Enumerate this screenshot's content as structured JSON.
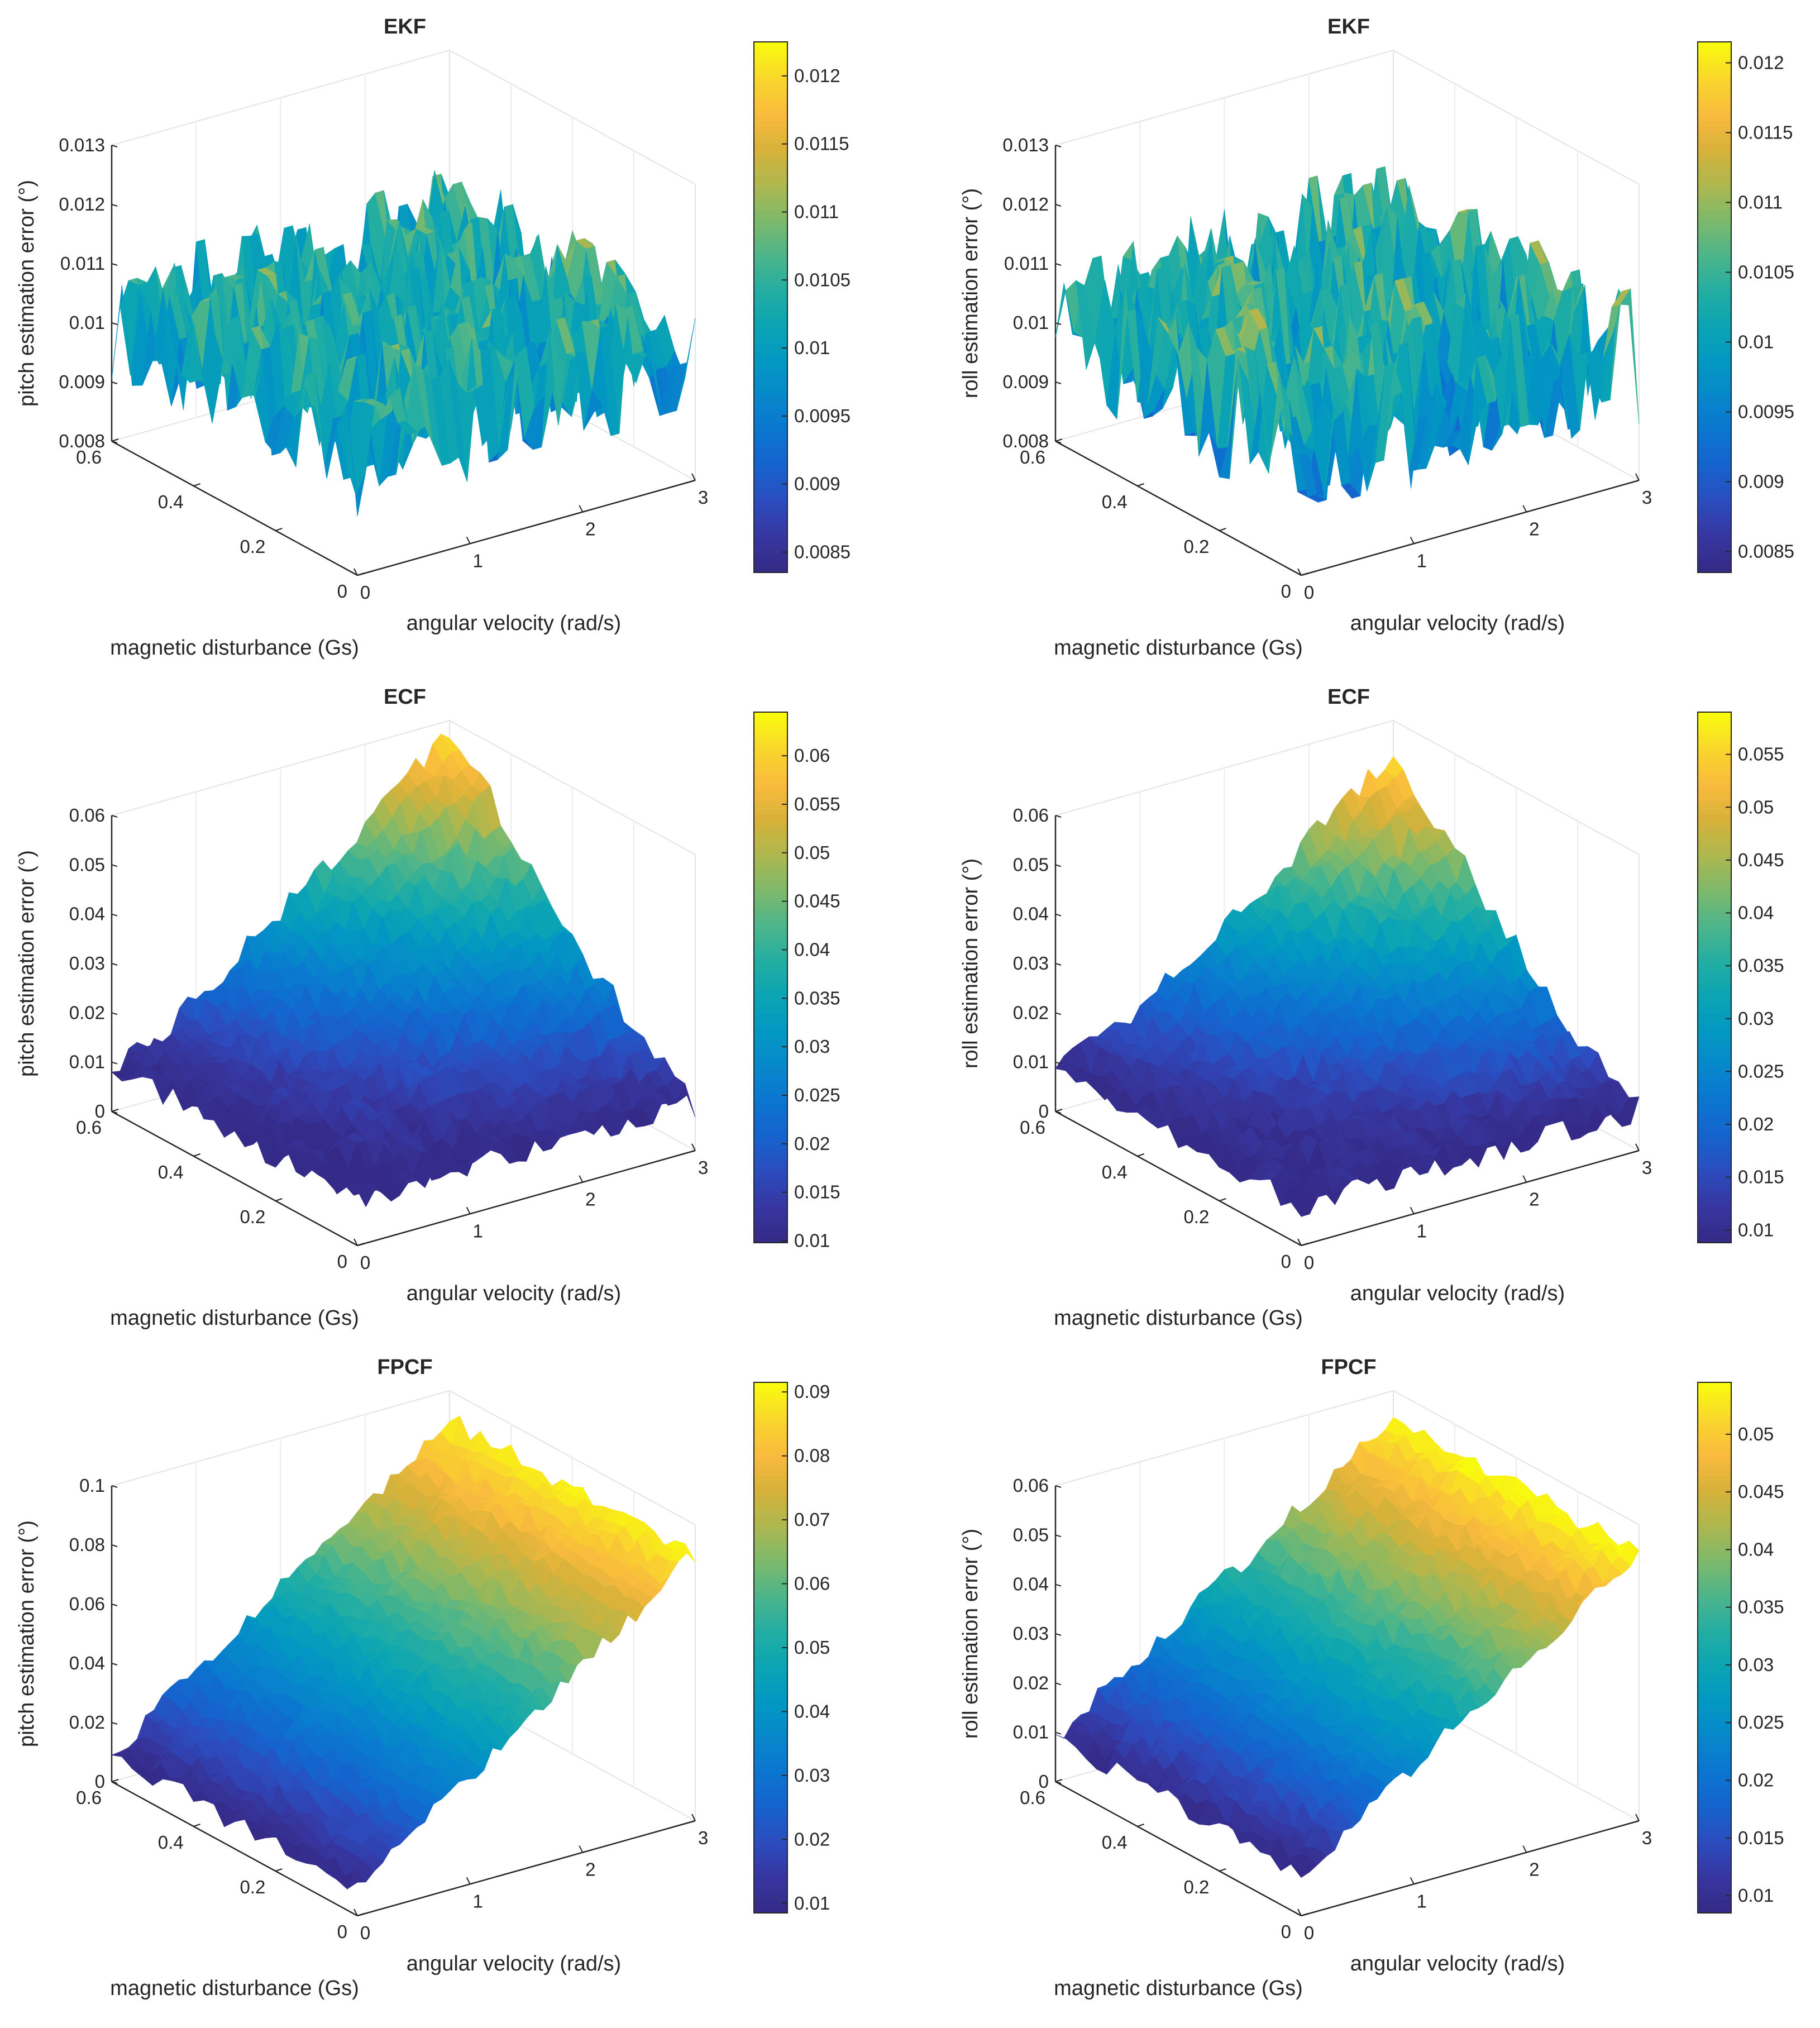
{
  "chart_data": [
    {
      "type": "surface",
      "title": "EKF",
      "xlabel": "angular velocity (rad/s)",
      "ylabel": "magnetic disturbance (Gs)",
      "zlabel": "pitch estimation error (°)",
      "xlim": [
        0,
        3
      ],
      "ylim": [
        0,
        0.6
      ],
      "zlim": [
        0.008,
        0.013
      ],
      "xticks": [
        "0",
        "1",
        "2",
        "3"
      ],
      "yticks": [
        "0",
        "0.2",
        "0.4",
        "0.6"
      ],
      "zticks": [
        "0.008",
        "0.009",
        "0.01",
        "0.011",
        "0.012",
        "0.013"
      ],
      "colorbar": {
        "range": [
          0.00835,
          0.01225
        ],
        "ticks": [
          "0.0085",
          "0.009",
          "0.0095",
          "0.01",
          "0.0105",
          "0.011",
          "0.0115",
          "0.012"
        ]
      },
      "surface_model": {
        "base": 0.0101,
        "slope_x": 0.0,
        "slope_y": 0.0,
        "noise": 0.0011,
        "corners": {
          "x0_y0": 0.0101,
          "x3_y0": 0.0101,
          "x0_y06": 0.0101,
          "x3_y06": 0.0101
        }
      }
    },
    {
      "type": "surface",
      "title": "EKF",
      "xlabel": "angular velocity (rad/s)",
      "ylabel": "magnetic disturbance (Gs)",
      "zlabel": "roll estimation error (°)",
      "xlim": [
        0,
        3
      ],
      "ylim": [
        0,
        0.6
      ],
      "zlim": [
        0.008,
        0.013
      ],
      "xticks": [
        "0",
        "1",
        "2",
        "3"
      ],
      "yticks": [
        "0",
        "0.2",
        "0.4",
        "0.6"
      ],
      "zticks": [
        "0.008",
        "0.009",
        "0.01",
        "0.011",
        "0.012",
        "0.013"
      ],
      "colorbar": {
        "range": [
          0.00835,
          0.01215
        ],
        "ticks": [
          "0.0085",
          "0.009",
          "0.0095",
          "0.01",
          "0.0105",
          "0.011",
          "0.0115",
          "0.012"
        ]
      },
      "surface_model": {
        "base": 0.0101,
        "slope_x": 0.0,
        "slope_y": 0.0,
        "noise": 0.0012,
        "corners": {
          "x0_y0": 0.0101,
          "x3_y0": 0.0101,
          "x0_y06": 0.0101,
          "x3_y06": 0.0101
        }
      }
    },
    {
      "type": "surface",
      "title": "ECF",
      "xlabel": "angular velocity (rad/s)",
      "ylabel": "magnetic disturbance (Gs)",
      "zlabel": "pitch estimation error (°)",
      "xlim": [
        0,
        3
      ],
      "ylim": [
        0,
        0.6
      ],
      "zlim": [
        0,
        0.065
      ],
      "xticks": [
        "0",
        "1",
        "2",
        "3"
      ],
      "yticks": [
        "0",
        "0.2",
        "0.4",
        "0.6"
      ],
      "zticks": [
        "0",
        "0.01",
        "0.02",
        "0.03",
        "0.04",
        "0.05",
        "0.06"
      ],
      "colorbar": {
        "range": [
          0.0098,
          0.0645
        ],
        "ticks": [
          "0.01",
          "0.015",
          "0.02",
          "0.025",
          "0.03",
          "0.035",
          "0.04",
          "0.045",
          "0.05",
          "0.055",
          "0.06"
        ]
      },
      "surface_model": {
        "base": 0.01,
        "slope_x": 0.0,
        "slope_y": 0.0,
        "noise": 0.003,
        "corners": {
          "x0_y0": 0.01,
          "x3_y0": 0.01,
          "x0_y06": 0.008,
          "x3_y06": 0.064
        }
      }
    },
    {
      "type": "surface",
      "title": "ECF",
      "xlabel": "angular velocity (rad/s)",
      "ylabel": "magnetic disturbance (Gs)",
      "zlabel": "roll estimation error (°)",
      "xlim": [
        0,
        3
      ],
      "ylim": [
        0,
        0.6
      ],
      "zlim": [
        0,
        0.065
      ],
      "xticks": [
        "0",
        "1",
        "2",
        "3"
      ],
      "yticks": [
        "0",
        "0.2",
        "0.4",
        "0.6"
      ],
      "zticks": [
        "0",
        "0.01",
        "0.02",
        "0.03",
        "0.04",
        "0.05",
        "0.06"
      ],
      "colorbar": {
        "range": [
          0.0088,
          0.059
        ],
        "ticks": [
          "0.01",
          "0.015",
          "0.02",
          "0.025",
          "0.03",
          "0.035",
          "0.04",
          "0.045",
          "0.05",
          "0.055"
        ]
      },
      "surface_model": {
        "base": 0.009,
        "slope_x": 0.0,
        "slope_y": 0.0,
        "noise": 0.0028,
        "corners": {
          "x0_y0": 0.009,
          "x3_y0": 0.009,
          "x0_y06": 0.008,
          "x3_y06": 0.059
        }
      }
    },
    {
      "type": "surface",
      "title": "FPCF",
      "xlabel": "angular velocity (rad/s)",
      "ylabel": "magnetic disturbance (Gs)",
      "zlabel": "pitch estimation error (°)",
      "xlim": [
        0,
        3
      ],
      "ylim": [
        0,
        0.6
      ],
      "zlim": [
        0,
        0.1
      ],
      "xticks": [
        "0",
        "1",
        "2",
        "3"
      ],
      "yticks": [
        "0",
        "0.2",
        "0.4",
        "0.6"
      ],
      "zticks": [
        "0",
        "0.02",
        "0.04",
        "0.06",
        "0.08",
        "0.1"
      ],
      "colorbar": {
        "range": [
          0.0085,
          0.0915
        ],
        "ticks": [
          "0.01",
          "0.02",
          "0.03",
          "0.04",
          "0.05",
          "0.06",
          "0.07",
          "0.08",
          "0.09"
        ]
      },
      "surface_model": {
        "base": 0.009,
        "slope_x": 0.027,
        "slope_y": 0.0,
        "noise": 0.0035,
        "corners": {
          "x0_y0": 0.009,
          "x3_y0": 0.09,
          "x0_y06": 0.009,
          "x3_y06": 0.09
        }
      }
    },
    {
      "type": "surface",
      "title": "FPCF",
      "xlabel": "angular velocity (rad/s)",
      "ylabel": "magnetic disturbance (Gs)",
      "zlabel": "roll estimation error (°)",
      "xlim": [
        0,
        3
      ],
      "ylim": [
        0,
        0.6
      ],
      "zlim": [
        0,
        0.06
      ],
      "xticks": [
        "0",
        "1",
        "2",
        "3"
      ],
      "yticks": [
        "0",
        "0.2",
        "0.4",
        "0.6"
      ],
      "zticks": [
        "0",
        "0.01",
        "0.02",
        "0.03",
        "0.04",
        "0.05",
        "0.06"
      ],
      "colorbar": {
        "range": [
          0.0085,
          0.0545
        ],
        "ticks": [
          "0.01",
          "0.015",
          "0.02",
          "0.025",
          "0.03",
          "0.035",
          "0.04",
          "0.045",
          "0.05"
        ]
      },
      "surface_model": {
        "base": 0.009,
        "slope_x": 0.015,
        "slope_y": 0.0,
        "noise": 0.0022,
        "corners": {
          "x0_y0": 0.009,
          "x3_y0": 0.054,
          "x0_y06": 0.009,
          "x3_y06": 0.054
        }
      }
    }
  ]
}
